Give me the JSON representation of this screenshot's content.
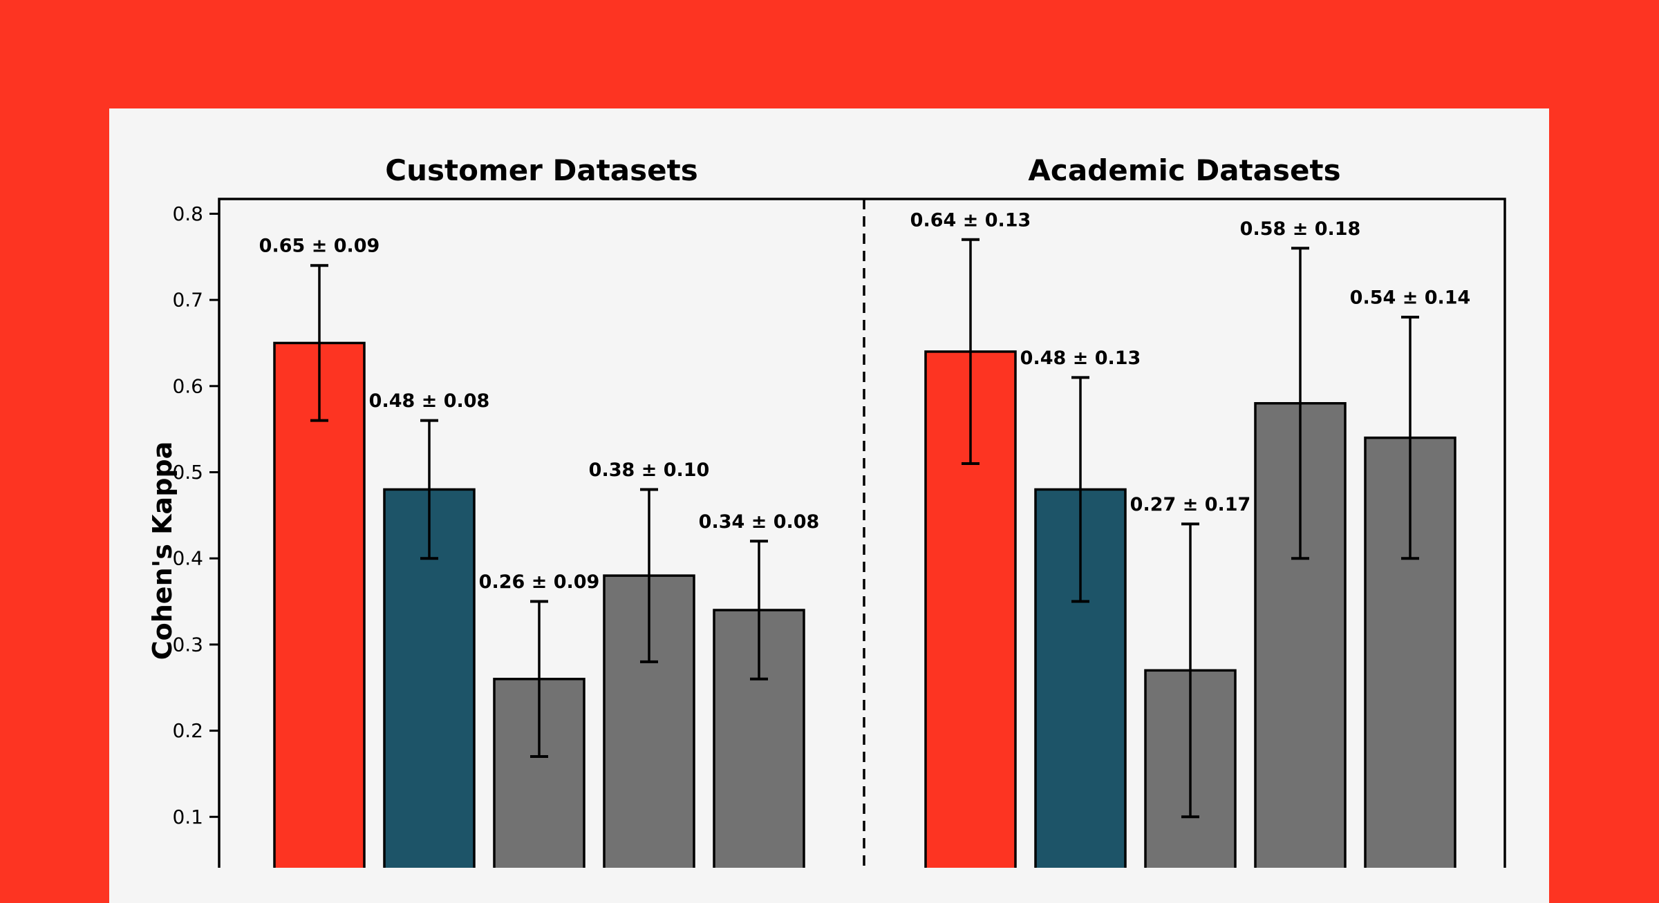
{
  "page": {
    "background_color": "#fd3422",
    "card_color": "#f5f5f5"
  },
  "chart_data": {
    "type": "bar",
    "ylabel": "Cohen's Kappa",
    "ylim": [
      0.0,
      0.82
    ],
    "yticks": [
      0.8,
      0.7,
      0.6,
      0.5,
      0.4,
      0.3,
      0.2,
      0.1
    ],
    "ytick_labels": [
      "0.8",
      "0.7",
      "0.6",
      "0.5",
      "0.4",
      "0.3",
      "0.2",
      "0.1"
    ],
    "grid": false,
    "legend": "none",
    "divider_style": "dashed-vertical-line",
    "error_bars": true,
    "colors": {
      "highlight_red": "#fd3422",
      "teal": "#1d5468",
      "gray": "#727272",
      "edge": "#000000"
    },
    "groups": [
      {
        "title": "Customer Datasets",
        "series": [
          {
            "value": 0.65,
            "error": 0.09,
            "label": "0.65 ± 0.09",
            "color": "#fd3422"
          },
          {
            "value": 0.48,
            "error": 0.08,
            "label": "0.48 ± 0.08",
            "color": "#1d5468"
          },
          {
            "value": 0.26,
            "error": 0.09,
            "label": "0.26 ± 0.09",
            "color": "#727272"
          },
          {
            "value": 0.38,
            "error": 0.1,
            "label": "0.38 ± 0.10",
            "color": "#727272"
          },
          {
            "value": 0.34,
            "error": 0.08,
            "label": "0.34 ± 0.08",
            "color": "#727272"
          }
        ]
      },
      {
        "title": "Academic Datasets",
        "series": [
          {
            "value": 0.64,
            "error": 0.13,
            "label": "0.64 ± 0.13",
            "color": "#fd3422"
          },
          {
            "value": 0.48,
            "error": 0.13,
            "label": "0.48 ± 0.13",
            "color": "#1d5468"
          },
          {
            "value": 0.27,
            "error": 0.17,
            "label": "0.27 ± 0.17",
            "color": "#727272"
          },
          {
            "value": 0.58,
            "error": 0.18,
            "label": "0.58 ± 0.18",
            "color": "#727272"
          },
          {
            "value": 0.54,
            "error": 0.14,
            "label": "0.54 ± 0.14",
            "color": "#727272"
          }
        ]
      }
    ]
  }
}
